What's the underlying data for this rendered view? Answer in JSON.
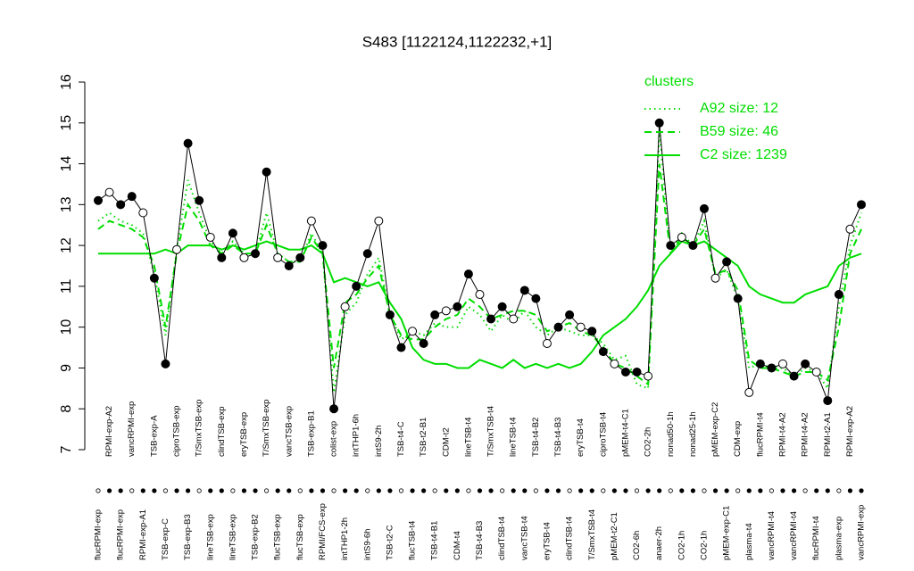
{
  "chart_data": {
    "type": "line",
    "title": "S483 [1122124,1122232,+1]",
    "categories": [
      "flucRPMI-exp",
      "RPMI-exp-A2",
      "flucRPMI-exp",
      "vancRPMI-exp",
      "RPMI-exp-A1",
      "TSB-exp-A",
      "TSB-exp-C",
      "ciproTSB-exp",
      "TSB-exp-B3",
      "T/SmxTSB-exp",
      "lineTSB-exp",
      "clindTSB-exp",
      "lineTSB-exp",
      "eryTSB-exp",
      "TSB-exp-B2",
      "T/SmxTSB-exp",
      "flucTSB-exp",
      "vancTSB-exp",
      "flucTSB-exp",
      "TSB-exp-B1",
      "RPMI/FCS-exp",
      "colist-exp",
      "intTHP1-2h",
      "intTHP1-6h",
      "intS9-6h",
      "intS9-2h",
      "TSB-t2-C",
      "TSB-t4-C",
      "flucTSB-t4",
      "TSB-t2-B1",
      "TSB-t4-B1",
      "CDM-t2",
      "CDM-t4",
      "lineTSB-t4",
      "TSB-t4-B3",
      "T/SmxTSB-t4",
      "clindTSB-t4",
      "lineTSB-t4",
      "vancTSB-t4",
      "TSB-t4-B2",
      "eryTSB-t4",
      "TSB-t4-B3",
      "clindTSB-t4",
      "eryTSB-t4",
      "T/SmxTSB-t4",
      "ciproTSB-t4",
      "pMEM-t2-C1",
      "pMEM-t4-C1",
      "CO2-6h",
      "CO2-2h",
      "anaer-2h",
      "nonad50-1h",
      "CO2-1h",
      "nonad25-1h",
      "CO2-1h",
      "pMEM-exp-C2",
      "pMEM-exp-C1",
      "CDM-exp",
      "plasma-t4",
      "flucRPMI-t4",
      "vancRPMI-t4",
      "RPMI-t4-A2",
      "vancRPMI-t4",
      "RPMI-t4-A2",
      "flucRPMI-t4",
      "RPMI-t2-A1",
      "plasma-exp",
      "RPMI-exp-A2",
      "vancRPMI-exp"
    ],
    "values": [
      13.1,
      13.3,
      13.0,
      13.2,
      12.8,
      11.2,
      9.1,
      11.9,
      14.5,
      13.1,
      12.2,
      11.7,
      12.3,
      11.7,
      11.8,
      13.8,
      11.7,
      11.5,
      11.7,
      12.6,
      12.0,
      8.0,
      10.5,
      11.0,
      11.8,
      12.6,
      10.3,
      9.5,
      9.9,
      9.6,
      10.3,
      10.4,
      10.5,
      11.3,
      10.8,
      10.2,
      10.5,
      10.2,
      10.9,
      10.7,
      9.6,
      10.0,
      10.3,
      10.0,
      9.9,
      9.4,
      9.1,
      8.9,
      8.9,
      8.8,
      15.0,
      12.0,
      12.2,
      12.0,
      12.9,
      11.2,
      11.6,
      10.7,
      8.4,
      9.1,
      9.0,
      9.1,
      8.8,
      9.1,
      8.9,
      8.2,
      10.8,
      12.4,
      13.0
    ],
    "color": "#000000",
    "legend_title": "clusters",
    "series": [
      {
        "name": "A92 size: 12",
        "color": "#00dd00",
        "dash": "dotted",
        "values": [
          12.6,
          12.8,
          12.6,
          12.5,
          12.3,
          11.3,
          9.8,
          11.9,
          13.6,
          12.8,
          12.1,
          11.8,
          12.1,
          11.8,
          11.8,
          12.8,
          11.8,
          11.6,
          11.6,
          12.3,
          11.8,
          8.4,
          10.3,
          10.6,
          11.3,
          11.7,
          10.3,
          9.7,
          9.9,
          9.8,
          10.1,
          10.0,
          10.0,
          10.5,
          10.3,
          9.9,
          10.3,
          10.1,
          10.4,
          10.0,
          9.8,
          10.0,
          9.9,
          9.8,
          9.8,
          9.6,
          9.2,
          9.3,
          8.6,
          8.5,
          14.8,
          11.8,
          12.3,
          12.0,
          12.6,
          11.2,
          11.4,
          10.7,
          9.0,
          9.1,
          9.0,
          9.0,
          8.8,
          9.0,
          8.9,
          8.5,
          10.5,
          12.0,
          12.8
        ]
      },
      {
        "name": "B59 size: 46",
        "color": "#00dd00",
        "dash": "dashed",
        "values": [
          12.4,
          12.6,
          12.5,
          12.4,
          12.2,
          11.5,
          10.0,
          11.8,
          13.0,
          12.6,
          12.0,
          11.8,
          12.0,
          11.8,
          11.8,
          12.5,
          11.8,
          11.6,
          11.6,
          12.2,
          11.8,
          9.0,
          10.6,
          10.8,
          11.2,
          11.5,
          10.3,
          9.8,
          9.7,
          9.7,
          10.0,
          10.2,
          10.3,
          10.7,
          10.5,
          10.2,
          10.3,
          10.4,
          10.4,
          10.3,
          9.9,
          10.0,
          10.1,
          9.9,
          9.8,
          9.5,
          9.1,
          9.0,
          8.8,
          8.6,
          14.0,
          11.8,
          12.2,
          12.0,
          12.4,
          11.3,
          11.4,
          10.9,
          9.2,
          9.0,
          9.0,
          8.9,
          8.8,
          8.9,
          8.9,
          8.7,
          10.0,
          11.8,
          12.4
        ]
      },
      {
        "name": "C2 size: 1239",
        "color": "#00dd00",
        "dash": "solid",
        "values": [
          11.8,
          11.8,
          11.8,
          11.8,
          11.8,
          11.8,
          11.9,
          11.8,
          12.0,
          12.0,
          12.0,
          11.9,
          12.0,
          11.9,
          12.0,
          12.1,
          12.0,
          11.9,
          11.9,
          12.0,
          11.8,
          11.1,
          11.2,
          11.1,
          11.0,
          11.1,
          10.6,
          10.2,
          9.5,
          9.2,
          9.1,
          9.1,
          9.0,
          9.0,
          9.2,
          9.1,
          9.0,
          9.2,
          9.0,
          9.1,
          9.0,
          9.1,
          9.0,
          9.1,
          9.4,
          9.8,
          10.0,
          10.2,
          10.5,
          10.9,
          11.5,
          11.8,
          12.1,
          12.0,
          12.1,
          11.9,
          11.7,
          11.5,
          11.0,
          10.8,
          10.7,
          10.6,
          10.6,
          10.8,
          10.9,
          11.0,
          11.5,
          11.7,
          11.8
        ]
      }
    ],
    "ylim": [
      7,
      16
    ],
    "yticks": [
      7,
      8,
      9,
      10,
      11,
      12,
      13,
      14,
      15,
      16
    ],
    "legend": "top-right"
  }
}
